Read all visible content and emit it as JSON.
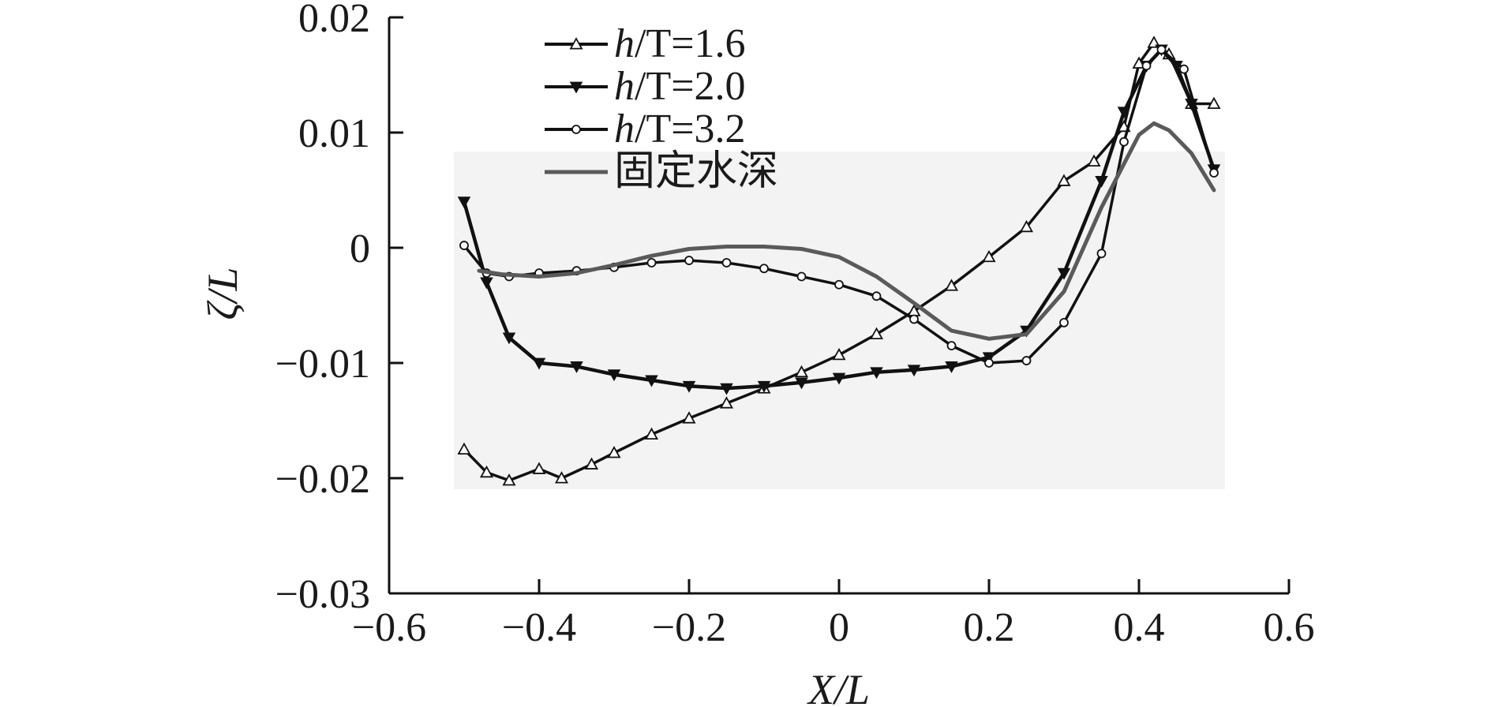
{
  "chart_data": {
    "type": "line",
    "xlabel": "X/L",
    "ylabel": "ζ/L",
    "xlim": [
      -0.6,
      0.6
    ],
    "ylim": [
      -0.03,
      0.02
    ],
    "xticks": [
      -0.6,
      -0.4,
      -0.2,
      0,
      0.2,
      0.4,
      0.6
    ],
    "xtick_labels": [
      "−0.6",
      "−0.4",
      "−0.2",
      "0",
      "0.2",
      "0.4",
      "0.6"
    ],
    "yticks": [
      0.02,
      0.01,
      0,
      -0.01,
      -0.02,
      -0.03
    ],
    "ytick_labels": [
      "0.02",
      "0.01",
      "0",
      "−0.01",
      "−0.02",
      "−0.03"
    ],
    "legend_position": "top-left",
    "grid": false,
    "series": [
      {
        "name": "h/T=1.6",
        "name_italic": "h",
        "name_rest": "/T=1.6",
        "marker": "triangle-up-open",
        "color": "#111111",
        "x": [
          -0.5,
          -0.47,
          -0.44,
          -0.4,
          -0.37,
          -0.33,
          -0.3,
          -0.25,
          -0.2,
          -0.15,
          -0.1,
          -0.05,
          0,
          0.05,
          0.1,
          0.15,
          0.2,
          0.25,
          0.3,
          0.34,
          0.38,
          0.4,
          0.42,
          0.44,
          0.47,
          0.5
        ],
        "y": [
          -0.0175,
          -0.0195,
          -0.0202,
          -0.0192,
          -0.02,
          -0.0188,
          -0.0178,
          -0.0162,
          -0.0148,
          -0.0135,
          -0.0122,
          -0.0108,
          -0.0093,
          -0.0075,
          -0.0055,
          -0.0033,
          -0.0008,
          0.0018,
          0.0058,
          0.0075,
          0.0105,
          0.016,
          0.0178,
          0.0168,
          0.0125,
          0.0125
        ]
      },
      {
        "name": "h/T=2.0",
        "name_italic": "h",
        "name_rest": "/T=2.0",
        "marker": "triangle-down-filled",
        "color": "#111111",
        "x": [
          -0.5,
          -0.47,
          -0.44,
          -0.4,
          -0.35,
          -0.3,
          -0.25,
          -0.2,
          -0.15,
          -0.1,
          -0.05,
          0,
          0.05,
          0.1,
          0.15,
          0.2,
          0.25,
          0.3,
          0.35,
          0.38,
          0.41,
          0.43,
          0.45,
          0.47,
          0.5
        ],
        "y": [
          0.004,
          -0.003,
          -0.0078,
          -0.01,
          -0.0103,
          -0.011,
          -0.0115,
          -0.012,
          -0.0122,
          -0.012,
          -0.0117,
          -0.0113,
          -0.0108,
          -0.0106,
          -0.0103,
          -0.0095,
          -0.0072,
          -0.0022,
          0.0058,
          0.0118,
          0.0158,
          0.0172,
          0.0158,
          0.0125,
          0.0068
        ]
      },
      {
        "name": "h/T=3.2",
        "name_italic": "h",
        "name_rest": "/T=3.2",
        "marker": "circle-open",
        "color": "#111111",
        "x": [
          -0.5,
          -0.47,
          -0.44,
          -0.4,
          -0.35,
          -0.3,
          -0.25,
          -0.2,
          -0.15,
          -0.1,
          -0.05,
          0,
          0.05,
          0.1,
          0.15,
          0.2,
          0.25,
          0.3,
          0.35,
          0.38,
          0.41,
          0.43,
          0.46,
          0.5
        ],
        "y": [
          0.0002,
          -0.0022,
          -0.0025,
          -0.0022,
          -0.002,
          -0.0017,
          -0.0013,
          -0.0011,
          -0.0013,
          -0.0018,
          -0.0025,
          -0.0032,
          -0.0042,
          -0.0062,
          -0.0085,
          -0.01,
          -0.0098,
          -0.0065,
          -0.0005,
          0.0092,
          0.0158,
          0.0172,
          0.0155,
          0.0065
        ]
      },
      {
        "name": "固定水深",
        "marker": "none",
        "color": "#5a5a5a",
        "x": [
          -0.48,
          -0.45,
          -0.4,
          -0.35,
          -0.3,
          -0.25,
          -0.2,
          -0.15,
          -0.1,
          -0.05,
          0,
          0.05,
          0.1,
          0.15,
          0.2,
          0.25,
          0.3,
          0.35,
          0.4,
          0.42,
          0.44,
          0.47,
          0.5
        ],
        "y": [
          -0.002,
          -0.0023,
          -0.0025,
          -0.0022,
          -0.0015,
          -0.0007,
          -0.0001,
          0.0001,
          0.0001,
          -0.0001,
          -0.0008,
          -0.0025,
          -0.0048,
          -0.0072,
          -0.0079,
          -0.0075,
          -0.0038,
          0.0035,
          0.0098,
          0.0108,
          0.0102,
          0.0082,
          0.005
        ]
      }
    ]
  }
}
